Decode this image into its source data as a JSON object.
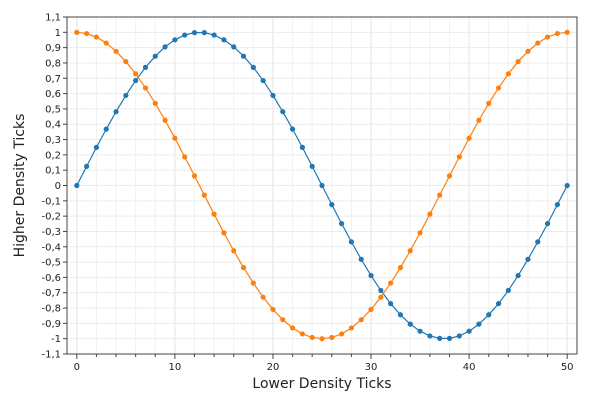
{
  "chart_data": {
    "type": "line",
    "title": "",
    "xlabel": "Lower Density Ticks",
    "ylabel": "Higher Density Ticks",
    "xlim": [
      -1,
      51
    ],
    "ylim": [
      -1.1,
      1.1
    ],
    "x_ticks": [
      0,
      10,
      20,
      30,
      40,
      50
    ],
    "x_tick_labels": [
      "0",
      "10",
      "20",
      "30",
      "40",
      "50"
    ],
    "y_ticks": [
      -1.1,
      -1,
      -0.9,
      -0.8,
      -0.7,
      -0.6,
      -0.5,
      -0.4,
      -0.3,
      -0.2,
      -0.1,
      0,
      0.1,
      0.2,
      0.3,
      0.4,
      0.5,
      0.6,
      0.7,
      0.8,
      0.9,
      1,
      1.1
    ],
    "y_tick_labels": [
      "-1,1",
      "-1",
      "-0,9",
      "-0,8",
      "-0,7",
      "-0,6",
      "-0,5",
      "-0,4",
      "-0,3",
      "-0,2",
      "-0,1",
      "0",
      "0,1",
      "0,2",
      "0,3",
      "0,4",
      "0,5",
      "0,6",
      "0,7",
      "0,8",
      "0,9",
      "1",
      "1,1"
    ],
    "grid": true,
    "x": [
      0,
      1,
      2,
      3,
      4,
      5,
      6,
      7,
      8,
      9,
      10,
      11,
      12,
      13,
      14,
      15,
      16,
      17,
      18,
      19,
      20,
      21,
      22,
      23,
      24,
      25,
      26,
      27,
      28,
      29,
      30,
      31,
      32,
      33,
      34,
      35,
      36,
      37,
      38,
      39,
      40,
      41,
      42,
      43,
      44,
      45,
      46,
      47,
      48,
      49,
      50
    ],
    "series": [
      {
        "color": "#1f77b4",
        "values": [
          0,
          0.125,
          0.249,
          0.368,
          0.482,
          0.588,
          0.685,
          0.771,
          0.844,
          0.905,
          0.951,
          0.982,
          0.998,
          0.998,
          0.982,
          0.951,
          0.905,
          0.844,
          0.771,
          0.685,
          0.588,
          0.482,
          0.368,
          0.249,
          0.125,
          0,
          -0.125,
          -0.249,
          -0.368,
          -0.482,
          -0.588,
          -0.685,
          -0.771,
          -0.844,
          -0.905,
          -0.951,
          -0.982,
          -0.998,
          -0.998,
          -0.982,
          -0.951,
          -0.905,
          -0.844,
          -0.771,
          -0.685,
          -0.588,
          -0.482,
          -0.368,
          -0.249,
          -0.125,
          0
        ]
      },
      {
        "color": "#ff7f0e",
        "values": [
          1,
          0.992,
          0.969,
          0.93,
          0.876,
          0.809,
          0.729,
          0.637,
          0.536,
          0.426,
          0.309,
          0.187,
          0.063,
          -0.063,
          -0.187,
          -0.309,
          -0.426,
          -0.536,
          -0.637,
          -0.729,
          -0.809,
          -0.876,
          -0.93,
          -0.969,
          -0.992,
          -1,
          -0.992,
          -0.969,
          -0.93,
          -0.876,
          -0.809,
          -0.729,
          -0.637,
          -0.536,
          -0.426,
          -0.309,
          -0.187,
          -0.063,
          0.063,
          0.187,
          0.309,
          0.426,
          0.536,
          0.637,
          0.729,
          0.809,
          0.876,
          0.93,
          0.969,
          0.992,
          1
        ]
      }
    ]
  }
}
